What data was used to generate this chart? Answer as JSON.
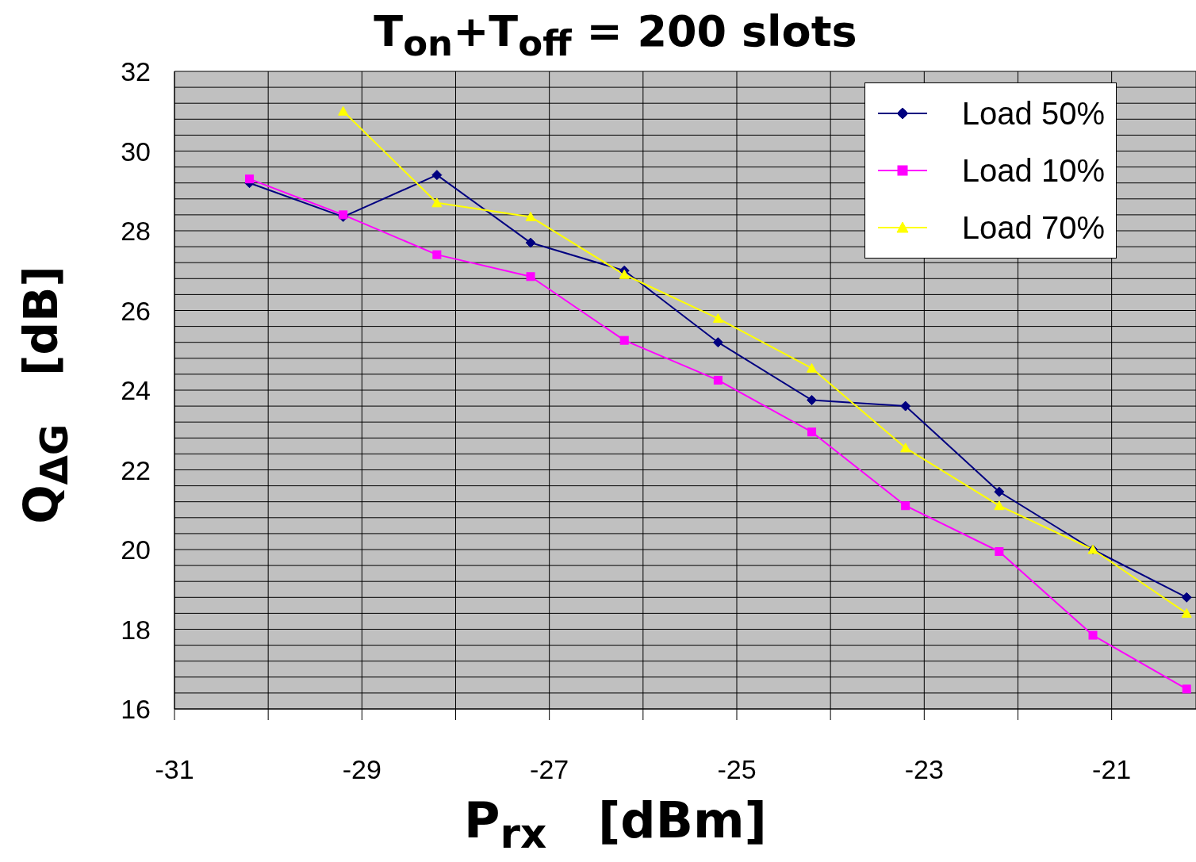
{
  "chart_data": {
    "type": "line",
    "title": "T$_{on}$+T$_{off}$ = 200 slots",
    "xlabel": "P$_{rx}$   [dBm]",
    "ylabel": "Q$_{ΔG}$   [dB]",
    "x": [
      -30.2,
      -29.2,
      -28.2,
      -27.2,
      -26.2,
      -25.2,
      -24.2,
      -23.2,
      -22.2,
      -21.2,
      -20.2
    ],
    "series": [
      {
        "name": "Load 50%",
        "color": "#000080",
        "marker": "diamond",
        "values": [
          29.2,
          28.35,
          29.4,
          27.7,
          27.0,
          25.2,
          23.75,
          23.6,
          21.45,
          20.0,
          18.8
        ]
      },
      {
        "name": "Load 10%",
        "color": "#ff00ff",
        "marker": "square",
        "values": [
          29.3,
          28.4,
          27.4,
          26.85,
          25.25,
          24.25,
          22.95,
          21.1,
          19.95,
          17.85,
          16.5
        ]
      },
      {
        "name": "Load 70%",
        "color": "#ffff00",
        "marker": "triangle",
        "values": [
          null,
          31.0,
          28.7,
          28.35,
          26.9,
          25.8,
          24.55,
          22.55,
          21.1,
          20.0,
          18.4
        ]
      }
    ],
    "xlim": [
      -31,
      -20.1
    ],
    "xticks": [
      -31,
      {
        "value": -30,
        "label": null
      },
      -29,
      {
        "value": -28,
        "label": null
      },
      -27,
      {
        "value": -26,
        "label": null
      },
      -25,
      {
        "value": -24,
        "label": null
      },
      -23,
      {
        "value": -22,
        "label": null
      },
      -21
    ],
    "ylim": [
      16,
      32
    ],
    "yticks": [
      16,
      {
        "value": 16.4,
        "label": null
      },
      {
        "value": 16.8,
        "label": null
      },
      {
        "value": 17.2,
        "label": null
      },
      {
        "value": 17.6,
        "label": null
      },
      18,
      {
        "value": 18.4,
        "label": null
      },
      {
        "value": 18.8,
        "label": null
      },
      {
        "value": 19.2,
        "label": null
      },
      {
        "value": 19.6,
        "label": null
      },
      20,
      {
        "value": 20.4,
        "label": null
      },
      {
        "value": 20.8,
        "label": null
      },
      {
        "value": 21.2,
        "label": null
      },
      {
        "value": 21.6,
        "label": null
      },
      22,
      {
        "value": 22.4,
        "label": null
      },
      {
        "value": 22.8,
        "label": null
      },
      {
        "value": 23.2,
        "label": null
      },
      {
        "value": 23.6,
        "label": null
      },
      24,
      {
        "value": 24.4,
        "label": null
      },
      {
        "value": 24.8,
        "label": null
      },
      {
        "value": 25.2,
        "label": null
      },
      {
        "value": 25.6,
        "label": null
      },
      26,
      {
        "value": 26.4,
        "label": null
      },
      {
        "value": 26.8,
        "label": null
      },
      {
        "value": 27.2,
        "label": null
      },
      {
        "value": 27.6,
        "label": null
      },
      28,
      {
        "value": 28.4,
        "label": null
      },
      {
        "value": 28.8,
        "label": null
      },
      {
        "value": 29.2,
        "label": null
      },
      {
        "value": 29.6,
        "label": null
      },
      30,
      {
        "value": 30.4,
        "label": null
      },
      {
        "value": 30.8,
        "label": null
      },
      {
        "value": 31.2,
        "label": null
      },
      {
        "value": 31.6,
        "label": null
      },
      32
    ],
    "grid": true,
    "legend": "top right",
    "line_style": "solid"
  }
}
